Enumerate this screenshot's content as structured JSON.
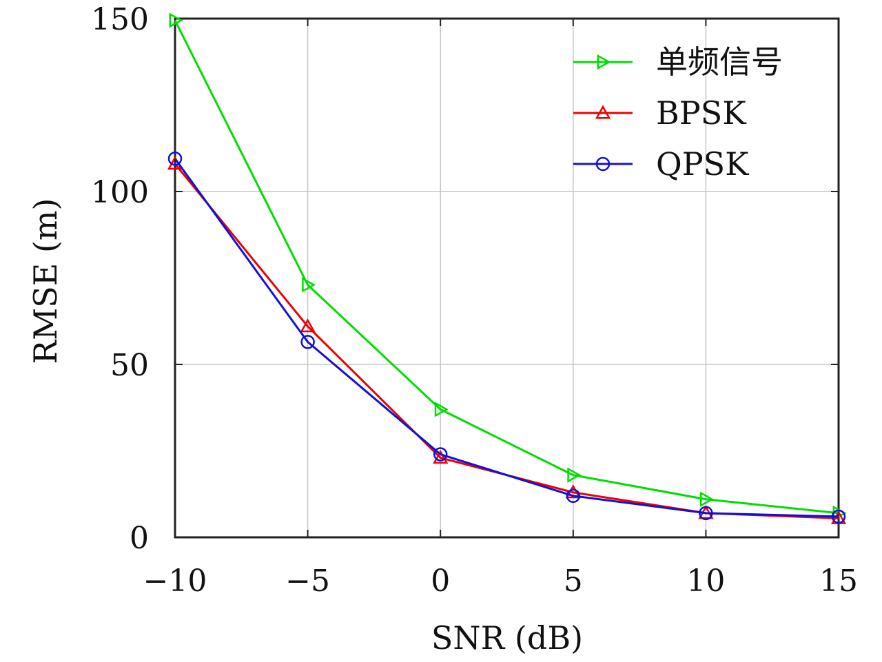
{
  "chart_data": {
    "type": "line",
    "title": "",
    "xlabel": "SNR (dB)",
    "ylabel": "RMSE (m)",
    "x": [
      -10,
      -5,
      0,
      5,
      10,
      15
    ],
    "xlim": [
      -10,
      15
    ],
    "ylim": [
      0,
      150
    ],
    "xticks": [
      -10,
      -5,
      0,
      5,
      10,
      15
    ],
    "xtick_labels": [
      "−10",
      "−5",
      "0",
      "5",
      "10",
      "15"
    ],
    "yticks": [
      0,
      50,
      100,
      150
    ],
    "ytick_labels": [
      "0",
      "50",
      "100",
      "150"
    ],
    "grid": true,
    "legend_position": "top-right",
    "series": [
      {
        "name": "单频信号",
        "color": "#00dd00",
        "marker": "triangle-right",
        "values": [
          149.5,
          73,
          37,
          18,
          11,
          7
        ]
      },
      {
        "name": "BPSK",
        "color": "#ee0000",
        "marker": "triangle-up",
        "values": [
          108,
          61,
          23,
          13,
          7,
          5.5
        ]
      },
      {
        "name": "QPSK",
        "color": "#1010dd",
        "marker": "circle",
        "values": [
          109.5,
          56.5,
          24,
          12,
          7,
          6
        ]
      }
    ]
  }
}
